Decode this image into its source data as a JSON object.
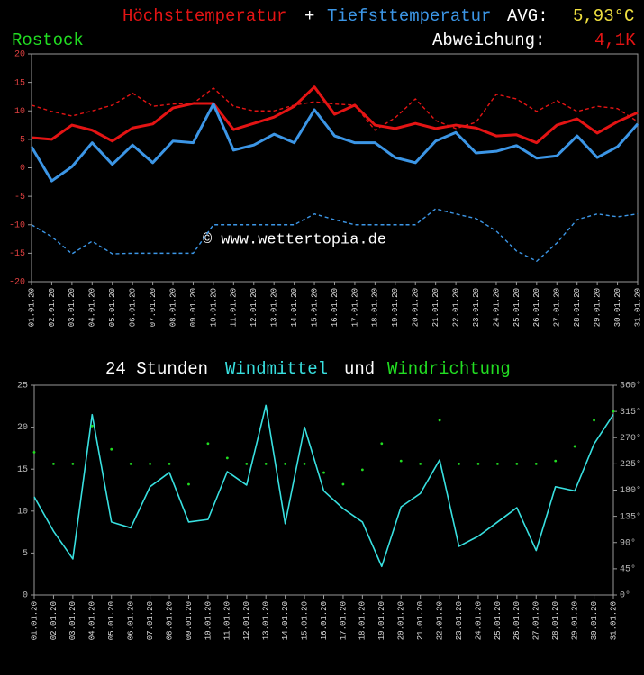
{
  "chart_data": [
    {
      "type": "line",
      "location": "Rostock",
      "title_join": "+",
      "avg_label": "AVG:",
      "avg_value": "5,93°C",
      "deviation_label": "Abweichung:",
      "deviation_value": "4,1K",
      "watermark": "© www.wettertopia.de",
      "categories": [
        "01.01.20",
        "02.01.20",
        "03.01.20",
        "04.01.20",
        "05.01.20",
        "06.01.20",
        "07.01.20",
        "08.01.20",
        "09.01.20",
        "10.01.20",
        "11.01.20",
        "12.01.20",
        "13.01.20",
        "14.01.20",
        "15.01.20",
        "16.01.20",
        "17.01.20",
        "18.01.20",
        "19.01.20",
        "20.01.20",
        "21.01.20",
        "22.01.20",
        "23.01.20",
        "24.01.20",
        "25.01.20",
        "26.01.20",
        "27.01.20",
        "28.01.20",
        "29.01.20",
        "30.01.20",
        "31.01.20"
      ],
      "ylim": [
        -20,
        20
      ],
      "yticks": [
        -20,
        -15,
        -10,
        -5,
        0,
        5,
        10,
        15,
        20
      ],
      "series": [
        {
          "name": "Höchsttemperatur",
          "color": "#e41414",
          "values": [
            5.3,
            5.0,
            7.5,
            6.6,
            4.7,
            7.0,
            7.7,
            10.5,
            11.3,
            11.3,
            6.7,
            7.8,
            8.9,
            10.8,
            14.2,
            9.4,
            11.0,
            7.5,
            6.9,
            7.8,
            6.9,
            7.5,
            7.0,
            5.6,
            5.8,
            4.4,
            7.5,
            8.6,
            6.1,
            8.1,
            9.7
          ]
        },
        {
          "name": "Tiefsttemperatur",
          "color": "#3c96e6",
          "values": [
            3.7,
            -2.3,
            0.2,
            4.4,
            0.6,
            4.0,
            0.9,
            4.7,
            4.4,
            11.2,
            3.1,
            4.0,
            5.9,
            4.4,
            10.2,
            5.6,
            4.4,
            4.4,
            1.8,
            0.9,
            4.7,
            6.2,
            2.6,
            2.9,
            3.9,
            1.7,
            2.1,
            5.6,
            1.8,
            3.7,
            7.7
          ]
        },
        {
          "color": "#e41414",
          "dashed": true,
          "values": [
            11.0,
            9.9,
            9.1,
            10.0,
            11.0,
            13.1,
            10.8,
            11.2,
            11.3,
            14.0,
            10.8,
            10.0,
            10.0,
            11.0,
            11.6,
            11.2,
            11.0,
            6.6,
            8.8,
            12.1,
            8.3,
            6.9,
            8.0,
            12.9,
            12.1,
            9.9,
            11.8,
            9.9,
            10.8,
            10.4,
            8.1
          ]
        },
        {
          "color": "#3c96e6",
          "dashed": true,
          "values": [
            -10.0,
            -12.1,
            -15.1,
            -12.9,
            -15.1,
            -15.0,
            -15.0,
            -15.0,
            -15.0,
            -10.0,
            -10.0,
            -10.0,
            -10.0,
            -10.0,
            -8.1,
            -9.1,
            -10.0,
            -10.0,
            -10.0,
            -10.0,
            -7.2,
            -8.1,
            -8.9,
            -11.1,
            -14.6,
            -16.4,
            -13.2,
            -9.1,
            -8.1,
            -8.6,
            -8.1
          ]
        }
      ]
    },
    {
      "type": "line",
      "title_prefix": "24 Stunden",
      "title_join": "und",
      "categories": [
        "01.01.20",
        "02.01.20",
        "03.01.20",
        "04.01.20",
        "05.01.20",
        "06.01.20",
        "07.01.20",
        "08.01.20",
        "09.01.20",
        "10.01.20",
        "11.01.20",
        "12.01.20",
        "13.01.20",
        "14.01.20",
        "15.01.20",
        "16.01.20",
        "17.01.20",
        "18.01.20",
        "19.01.20",
        "20.01.20",
        "21.01.20",
        "22.01.20",
        "23.01.20",
        "24.01.20",
        "25.01.20",
        "26.01.20",
        "27.01.20",
        "28.01.20",
        "29.01.20",
        "30.01.20",
        "31.01.20"
      ],
      "ylim": [
        0,
        25
      ],
      "yticks": [
        0,
        5,
        10,
        15,
        20,
        25
      ],
      "y2lim": [
        0,
        360
      ],
      "y2ticks": [
        {
          "value": 0,
          "label": "0°"
        },
        {
          "value": 45,
          "label": "45°"
        },
        {
          "value": 90,
          "label": "90°"
        },
        {
          "value": 135,
          "label": "135°"
        },
        {
          "value": 180,
          "label": "180°"
        },
        {
          "value": 225,
          "label": "225°"
        },
        {
          "value": 270,
          "label": "270°"
        },
        {
          "value": 315,
          "label": "315°"
        },
        {
          "value": 360,
          "label": "360°"
        }
      ],
      "series": [
        {
          "name": "Windmittel",
          "color": "#38e0e0",
          "values": [
            11.7,
            7.6,
            4.3,
            21.5,
            8.7,
            8.0,
            12.9,
            14.6,
            8.7,
            9.0,
            14.7,
            13.1,
            22.6,
            8.5,
            20.0,
            12.4,
            10.3,
            8.7,
            3.4,
            10.5,
            12.1,
            16.1,
            5.8,
            7.0,
            8.7,
            10.4,
            5.3,
            12.9,
            12.4,
            18.0,
            21.5
          ]
        },
        {
          "name": "Windrichtung",
          "color": "#22dd22",
          "axis": "y2",
          "marker": "dots",
          "values": [
            245,
            225,
            225,
            290,
            250,
            225,
            225,
            225,
            190,
            260,
            235,
            225,
            225,
            225,
            225,
            210,
            190,
            215,
            260,
            230,
            225,
            300,
            225,
            225,
            225,
            225,
            225,
            230,
            255,
            300,
            315
          ]
        }
      ]
    }
  ]
}
